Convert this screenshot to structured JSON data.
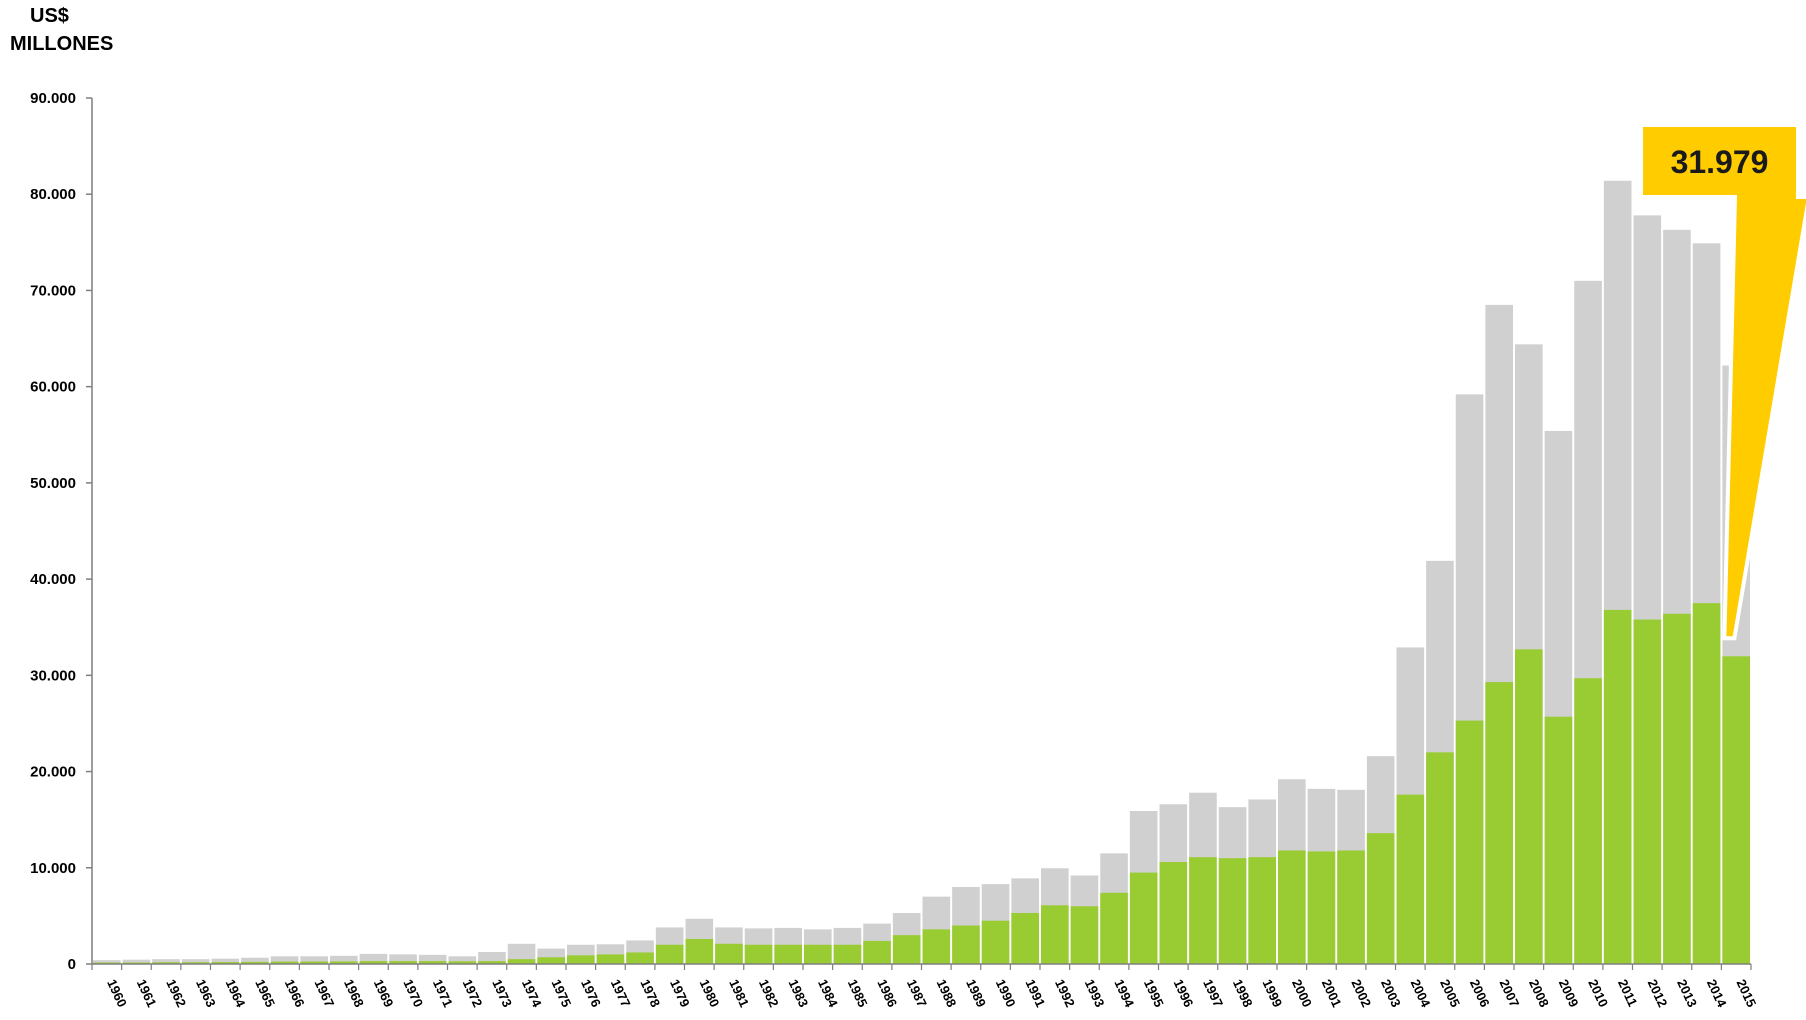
{
  "unit_label": {
    "line1": "US$",
    "line2": "MILLONES"
  },
  "callout": {
    "text": "31.979"
  },
  "colors": {
    "total": "#d0d0d0",
    "part": "#99cc33",
    "callout": "#ffcc00",
    "axis": "#7f7f7f"
  },
  "chart_data": {
    "type": "bar",
    "stacked_overlay": true,
    "ylabel": "US$ MILLONES",
    "ylim": [
      0,
      90000
    ],
    "ytick_labels": [
      "0",
      "10.000",
      "20.000",
      "30.000",
      "40.000",
      "50.000",
      "60.000",
      "70.000",
      "80.000",
      "90.000"
    ],
    "ytick_values": [
      0,
      10000,
      20000,
      30000,
      40000,
      50000,
      60000,
      70000,
      80000,
      90000
    ],
    "grid": false,
    "legend": "none",
    "categories": [
      "1960",
      "1961",
      "1962",
      "1963",
      "1964",
      "1965",
      "1966",
      "1967",
      "1968",
      "1969",
      "1970",
      "1971",
      "1972",
      "1973",
      "1974",
      "1975",
      "1976",
      "1977",
      "1978",
      "1979",
      "1980",
      "1981",
      "1982",
      "1983",
      "1984",
      "1985",
      "1986",
      "1987",
      "1988",
      "1989",
      "1990",
      "1991",
      "1992",
      "1993",
      "1994",
      "1995",
      "1996",
      "1997",
      "1998",
      "1999",
      "2000",
      "2001",
      "2002",
      "2003",
      "2004",
      "2005",
      "2006",
      "2007",
      "2008",
      "2009",
      "2010",
      "2011",
      "2012",
      "2013",
      "2014",
      "2015"
    ],
    "series": [
      {
        "values": [
          400,
          450,
          500,
          500,
          550,
          650,
          800,
          800,
          850,
          1050,
          1000,
          950,
          800,
          1250,
          2100,
          1600,
          2000,
          2050,
          2450,
          3800,
          4700,
          3800,
          3700,
          3750,
          3600,
          3750,
          4200,
          5300,
          7000,
          8000,
          8300,
          8900,
          9950,
          9200,
          11500,
          15900,
          16600,
          17800,
          16300,
          17100,
          19200,
          18200,
          18100,
          21600,
          32900,
          41900,
          59200,
          68500,
          64400,
          55400,
          71000,
          81400,
          77800,
          76300,
          74900,
          62200
        ]
      },
      {
        "values": [
          150,
          150,
          180,
          180,
          200,
          220,
          250,
          260,
          270,
          300,
          300,
          300,
          280,
          300,
          500,
          700,
          900,
          1000,
          1200,
          2000,
          2600,
          2100,
          2000,
          2000,
          2000,
          2000,
          2400,
          3000,
          3600,
          4000,
          4500,
          5300,
          6100,
          6000,
          7400,
          9500,
          10600,
          11100,
          11000,
          11100,
          11800,
          11700,
          11800,
          13600,
          17600,
          22000,
          25300,
          29300,
          32700,
          25700,
          29700,
          36800,
          35800,
          36400,
          37500,
          31979
        ]
      }
    ]
  }
}
